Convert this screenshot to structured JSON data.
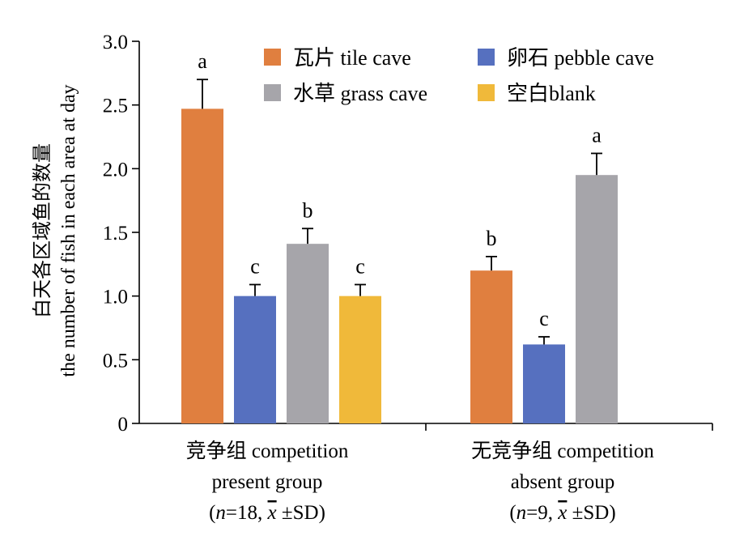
{
  "chart_data": {
    "type": "bar",
    "ylabel_cn": "白天各区域鱼的数量",
    "ylabel_en": "the number of fish in each area at day",
    "ylim": [
      0,
      3.0
    ],
    "yticks": [
      0,
      0.5,
      1.0,
      1.5,
      2.0,
      2.5,
      3.0
    ],
    "ytick_labels": [
      "0",
      "0.5",
      "1.0",
      "1.5",
      "2.0",
      "2.5",
      "3.0"
    ],
    "legend_position": "top-right",
    "series_def": [
      {
        "key": "tile",
        "name": "瓦片 tile cave",
        "color": "#E07F3F"
      },
      {
        "key": "pebble",
        "name": "卵石 pebble cave",
        "color": "#5670BF"
      },
      {
        "key": "grass",
        "name": "水草 grass cave",
        "color": "#A6A5AA"
      },
      {
        "key": "blank",
        "name": "空白blank",
        "color": "#F0B93A"
      }
    ],
    "groups": [
      {
        "label_line1": "竞争组 competition",
        "label_line2": "present group",
        "n_pre": "(",
        "n_var": "n",
        "n_mid": "=18, ",
        "xbar": "x",
        "n_post": " ±SD)",
        "bars": [
          {
            "series": "tile",
            "value": 2.47,
            "sd": 0.23,
            "letter": "a"
          },
          {
            "series": "pebble",
            "value": 1.0,
            "sd": 0.09,
            "letter": "c"
          },
          {
            "series": "grass",
            "value": 1.41,
            "sd": 0.12,
            "letter": "b"
          },
          {
            "series": "blank",
            "value": 1.0,
            "sd": 0.09,
            "letter": "c"
          }
        ]
      },
      {
        "label_line1": "无竞争组 competition",
        "label_line2": "absent group",
        "n_pre": "(",
        "n_var": "n",
        "n_mid": "=9, ",
        "xbar": "x",
        "n_post": " ±SD)",
        "bars": [
          {
            "series": "tile",
            "value": 1.2,
            "sd": 0.11,
            "letter": "b"
          },
          {
            "series": "pebble",
            "value": 0.62,
            "sd": 0.06,
            "letter": "c"
          },
          {
            "series": "grass",
            "value": 1.95,
            "sd": 0.17,
            "letter": "a"
          }
        ]
      }
    ]
  }
}
